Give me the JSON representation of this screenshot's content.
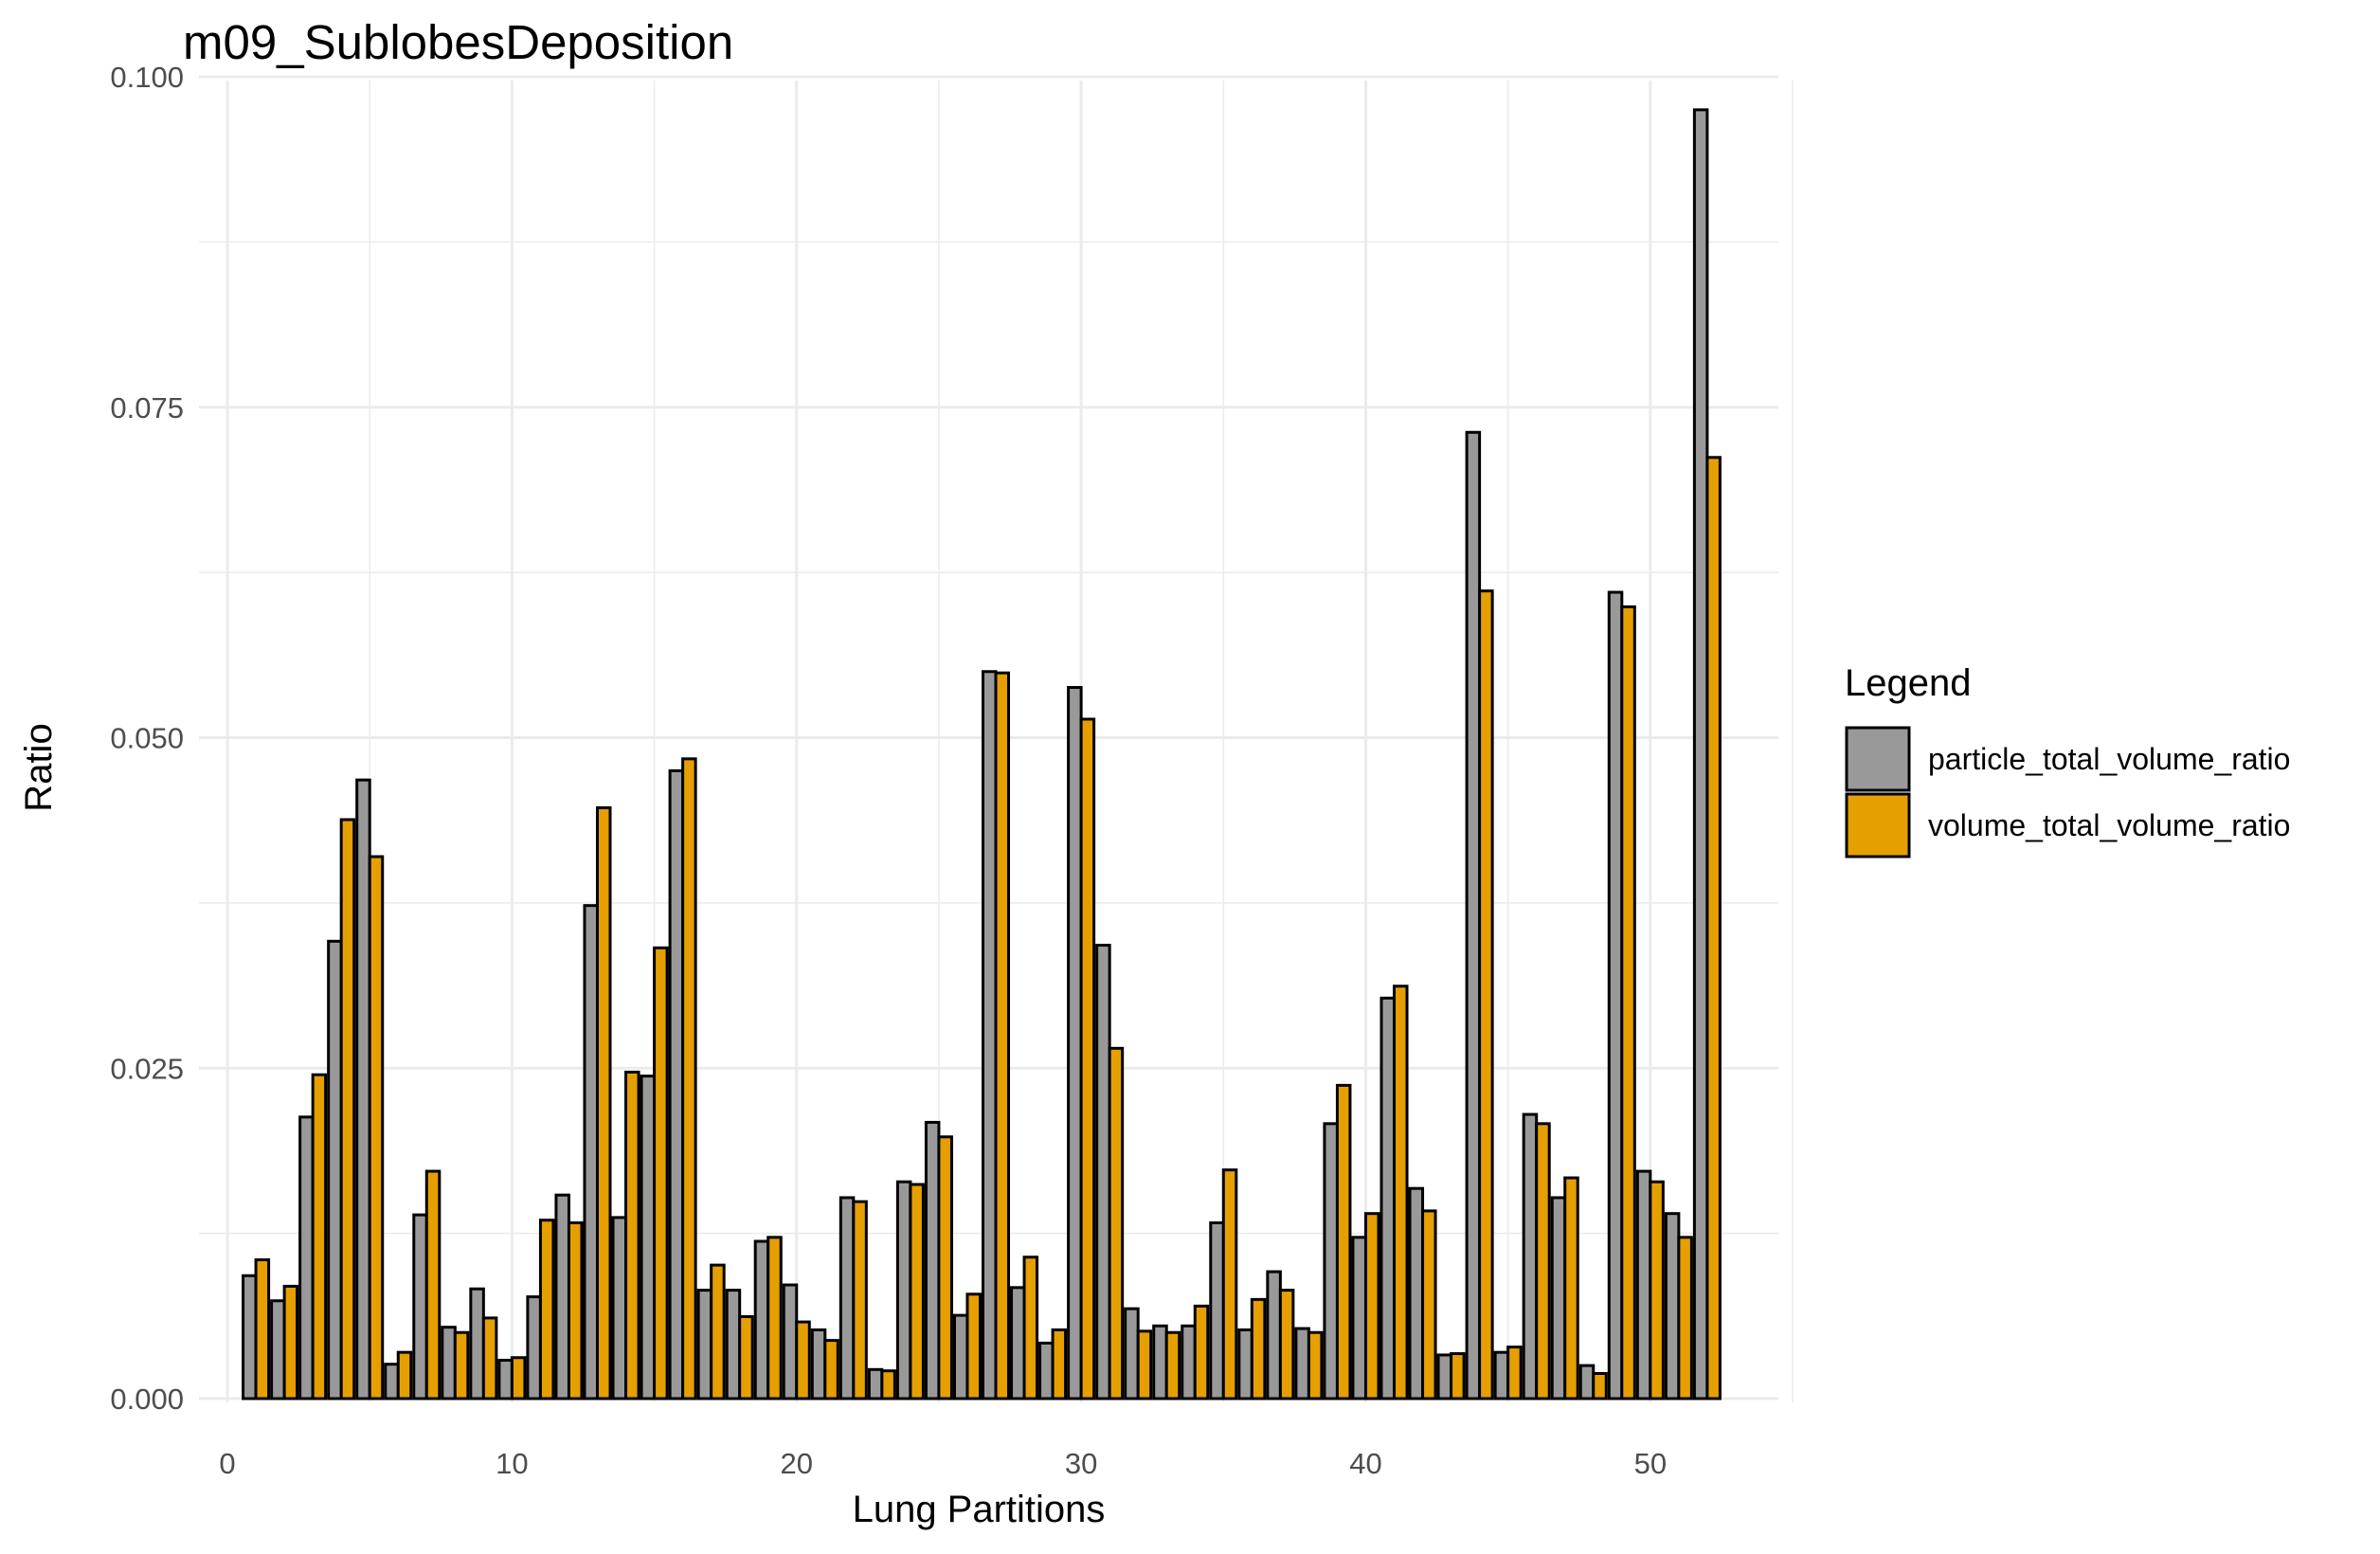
{
  "chart_data": {
    "type": "bar",
    "title": "m09_SublobesDeposition",
    "xlabel": "Lung Partitions",
    "ylabel": "Ratio",
    "xlim": [
      -1,
      54.5
    ],
    "ylim": [
      0,
      0.1
    ],
    "x_ticks": [
      "0",
      "10",
      "20",
      "30",
      "40",
      "50"
    ],
    "y_ticks": [
      "0.000",
      "0.025",
      "0.050",
      "0.075",
      "0.100"
    ],
    "grid": true,
    "legend": {
      "title": "Legend",
      "position": "right"
    },
    "x": [
      1,
      2,
      3,
      4,
      5,
      6,
      7,
      8,
      9,
      10,
      11,
      12,
      13,
      14,
      15,
      16,
      17,
      18,
      19,
      20,
      21,
      22,
      23,
      24,
      25,
      26,
      27,
      28,
      29,
      30,
      31,
      32,
      33,
      34,
      35,
      36,
      37,
      38,
      39,
      40,
      41,
      42,
      43,
      44,
      45,
      46,
      47,
      48,
      49,
      50,
      51,
      52
    ],
    "series": [
      {
        "name": "particle_total_volume_ratio",
        "color": "#999999",
        "values": [
          0.0093,
          0.0074,
          0.0213,
          0.0346,
          0.0468,
          0.0026,
          0.0139,
          0.0054,
          0.0083,
          0.0029,
          0.0077,
          0.0154,
          0.0373,
          0.0137,
          0.0244,
          0.0475,
          0.0082,
          0.0082,
          0.0119,
          0.0086,
          0.0052,
          0.0152,
          0.0022,
          0.0164,
          0.0209,
          0.0063,
          0.055,
          0.0084,
          0.0042,
          0.0538,
          0.0343,
          0.0068,
          0.0055,
          0.0055,
          0.0133,
          0.0052,
          0.0096,
          0.0053,
          0.0208,
          0.0122,
          0.0303,
          0.0159,
          0.0033,
          0.0731,
          0.0035,
          0.0215,
          0.0152,
          0.0025,
          0.061,
          0.0172,
          0.014,
          0.0975
        ]
      },
      {
        "name": "volume_total_volume_ratio",
        "color": "#E69F00",
        "values": [
          0.0105,
          0.0085,
          0.0245,
          0.0438,
          0.041,
          0.0035,
          0.0172,
          0.005,
          0.0061,
          0.0031,
          0.0135,
          0.0133,
          0.0447,
          0.0247,
          0.0341,
          0.0484,
          0.0101,
          0.0062,
          0.0122,
          0.0058,
          0.0044,
          0.0149,
          0.0021,
          0.0162,
          0.0198,
          0.0079,
          0.0549,
          0.0107,
          0.0052,
          0.0514,
          0.0265,
          0.0051,
          0.005,
          0.007,
          0.0173,
          0.0075,
          0.0082,
          0.005,
          0.0237,
          0.014,
          0.0312,
          0.0142,
          0.0034,
          0.0611,
          0.0039,
          0.0208,
          0.0167,
          0.0019,
          0.0599,
          0.0164,
          0.0122,
          0.0712
        ]
      }
    ]
  }
}
